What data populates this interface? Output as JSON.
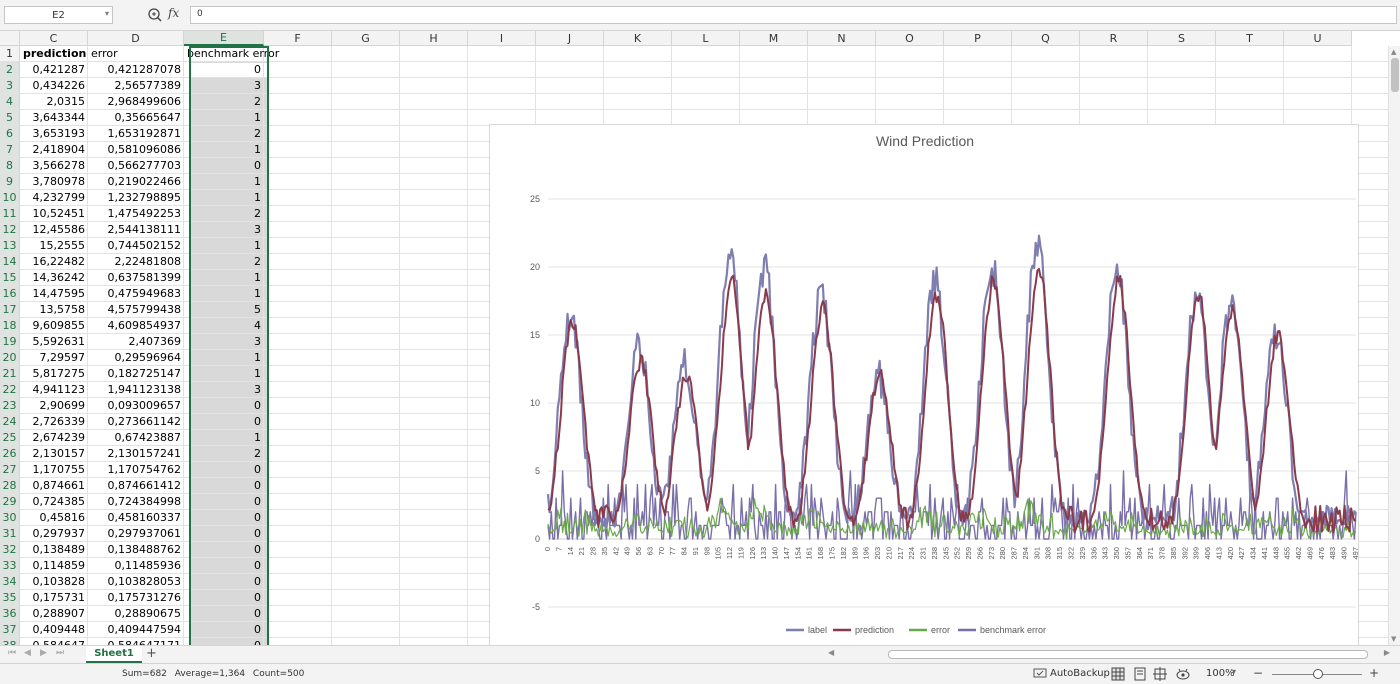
{
  "formula_bar": {
    "name_box": "E2",
    "fx_label": "fx",
    "value": "0"
  },
  "columns": [
    "C",
    "D",
    "E",
    "F",
    "G",
    "H",
    "I",
    "J",
    "K",
    "L",
    "M",
    "N",
    "O",
    "P",
    "Q",
    "R",
    "S",
    "T",
    "U"
  ],
  "selected_column": "E",
  "rows": [
    "1",
    "2",
    "3",
    "4",
    "5",
    "6",
    "7",
    "8",
    "9",
    "10",
    "11",
    "12",
    "13",
    "14",
    "15",
    "16",
    "17",
    "18",
    "19",
    "20",
    "21",
    "22",
    "23",
    "24",
    "25",
    "26",
    "27",
    "28",
    "29",
    "30",
    "31",
    "32",
    "33",
    "34",
    "35",
    "36",
    "37",
    "38"
  ],
  "header_row": {
    "C": "prediction",
    "D": "error",
    "E": "benchmark error"
  },
  "data_rows": [
    [
      "0,421287",
      "0,421287078",
      "0"
    ],
    [
      "0,434226",
      "2,56577389",
      "3"
    ],
    [
      "2,0315",
      "2,968499606",
      "2"
    ],
    [
      "3,643344",
      "0,35665647",
      "1"
    ],
    [
      "3,653193",
      "1,653192871",
      "2"
    ],
    [
      "2,418904",
      "0,581096086",
      "1"
    ],
    [
      "3,566278",
      "0,566277703",
      "0"
    ],
    [
      "3,780978",
      "0,219022466",
      "1"
    ],
    [
      "4,232799",
      "1,232798895",
      "1"
    ],
    [
      "10,52451",
      "1,475492253",
      "2"
    ],
    [
      "12,45586",
      "2,544138111",
      "3"
    ],
    [
      "15,2555",
      "0,744502152",
      "1"
    ],
    [
      "16,22482",
      "2,22481808",
      "2"
    ],
    [
      "14,36242",
      "0,637581399",
      "1"
    ],
    [
      "14,47595",
      "0,475949683",
      "1"
    ],
    [
      "13,5758",
      "4,575799438",
      "5"
    ],
    [
      "9,609855",
      "4,609854937",
      "4"
    ],
    [
      "5,592631",
      "2,407369",
      "3"
    ],
    [
      "7,29597",
      "0,29596964",
      "1"
    ],
    [
      "5,817275",
      "0,182725147",
      "1"
    ],
    [
      "4,941123",
      "1,941123138",
      "3"
    ],
    [
      "2,90699",
      "0,093009657",
      "0"
    ],
    [
      "2,726339",
      "0,273661142",
      "0"
    ],
    [
      "2,674239",
      "0,67423887",
      "1"
    ],
    [
      "2,130157",
      "2,130157241",
      "2"
    ],
    [
      "1,170755",
      "1,170754762",
      "0"
    ],
    [
      "0,874661",
      "0,874661412",
      "0"
    ],
    [
      "0,724385",
      "0,724384998",
      "0"
    ],
    [
      "0,45816",
      "0,458160337",
      "0"
    ],
    [
      "0,297937",
      "0,297937061",
      "0"
    ],
    [
      "0,138489",
      "0,138488762",
      "0"
    ],
    [
      "0,114859",
      "0,11485936",
      "0"
    ],
    [
      "0,103828",
      "0,103828053",
      "0"
    ],
    [
      "0,175731",
      "0,175731276",
      "0"
    ],
    [
      "0,288907",
      "0,28890675",
      "0"
    ],
    [
      "0,409448",
      "0,409447594",
      "0"
    ],
    [
      "0,584647",
      "0,584647171",
      "0"
    ]
  ],
  "chart_data": {
    "type": "line",
    "title": "Wind Prediction",
    "ylim": [
      -5,
      25
    ],
    "yticks": [
      -5,
      0,
      5,
      10,
      15,
      20,
      25
    ],
    "grid": true,
    "legend": "bottom",
    "x_start": 0,
    "x_end": 497,
    "x_tick_step": 7,
    "series": [
      {
        "name": "label",
        "color": "#7e7eb0",
        "peaks": [
          [
            14,
            16
          ],
          [
            56,
            14
          ],
          [
            84,
            13
          ],
          [
            112,
            21
          ],
          [
            133,
            20
          ],
          [
            168,
            18
          ],
          [
            203,
            12
          ],
          [
            238,
            19
          ],
          [
            273,
            20
          ],
          [
            301,
            22
          ],
          [
            350,
            20
          ],
          [
            399,
            18
          ],
          [
            420,
            17
          ],
          [
            448,
            15
          ]
        ]
      },
      {
        "name": "prediction",
        "color": "#8b3a4a",
        "peaks": [
          [
            14,
            16
          ],
          [
            56,
            13
          ],
          [
            84,
            12
          ],
          [
            112,
            19
          ],
          [
            133,
            18
          ],
          [
            168,
            17
          ],
          [
            203,
            12
          ],
          [
            238,
            18
          ],
          [
            273,
            19
          ],
          [
            301,
            20
          ],
          [
            350,
            19
          ],
          [
            399,
            18
          ],
          [
            420,
            17
          ],
          [
            448,
            15
          ]
        ]
      },
      {
        "name": "error",
        "color": "#6aaa4a"
      },
      {
        "name": "benchmark error",
        "color": "#7a6fa8"
      }
    ]
  },
  "sheet_tabs": {
    "active": "Sheet1",
    "add": "+"
  },
  "status": {
    "sum": "Sum=682",
    "average": "Average=1,364",
    "count": "Count=500",
    "autobackup": "AutoBackup",
    "zoom": "100%",
    "zoom_minus": "−",
    "zoom_plus": "+"
  }
}
